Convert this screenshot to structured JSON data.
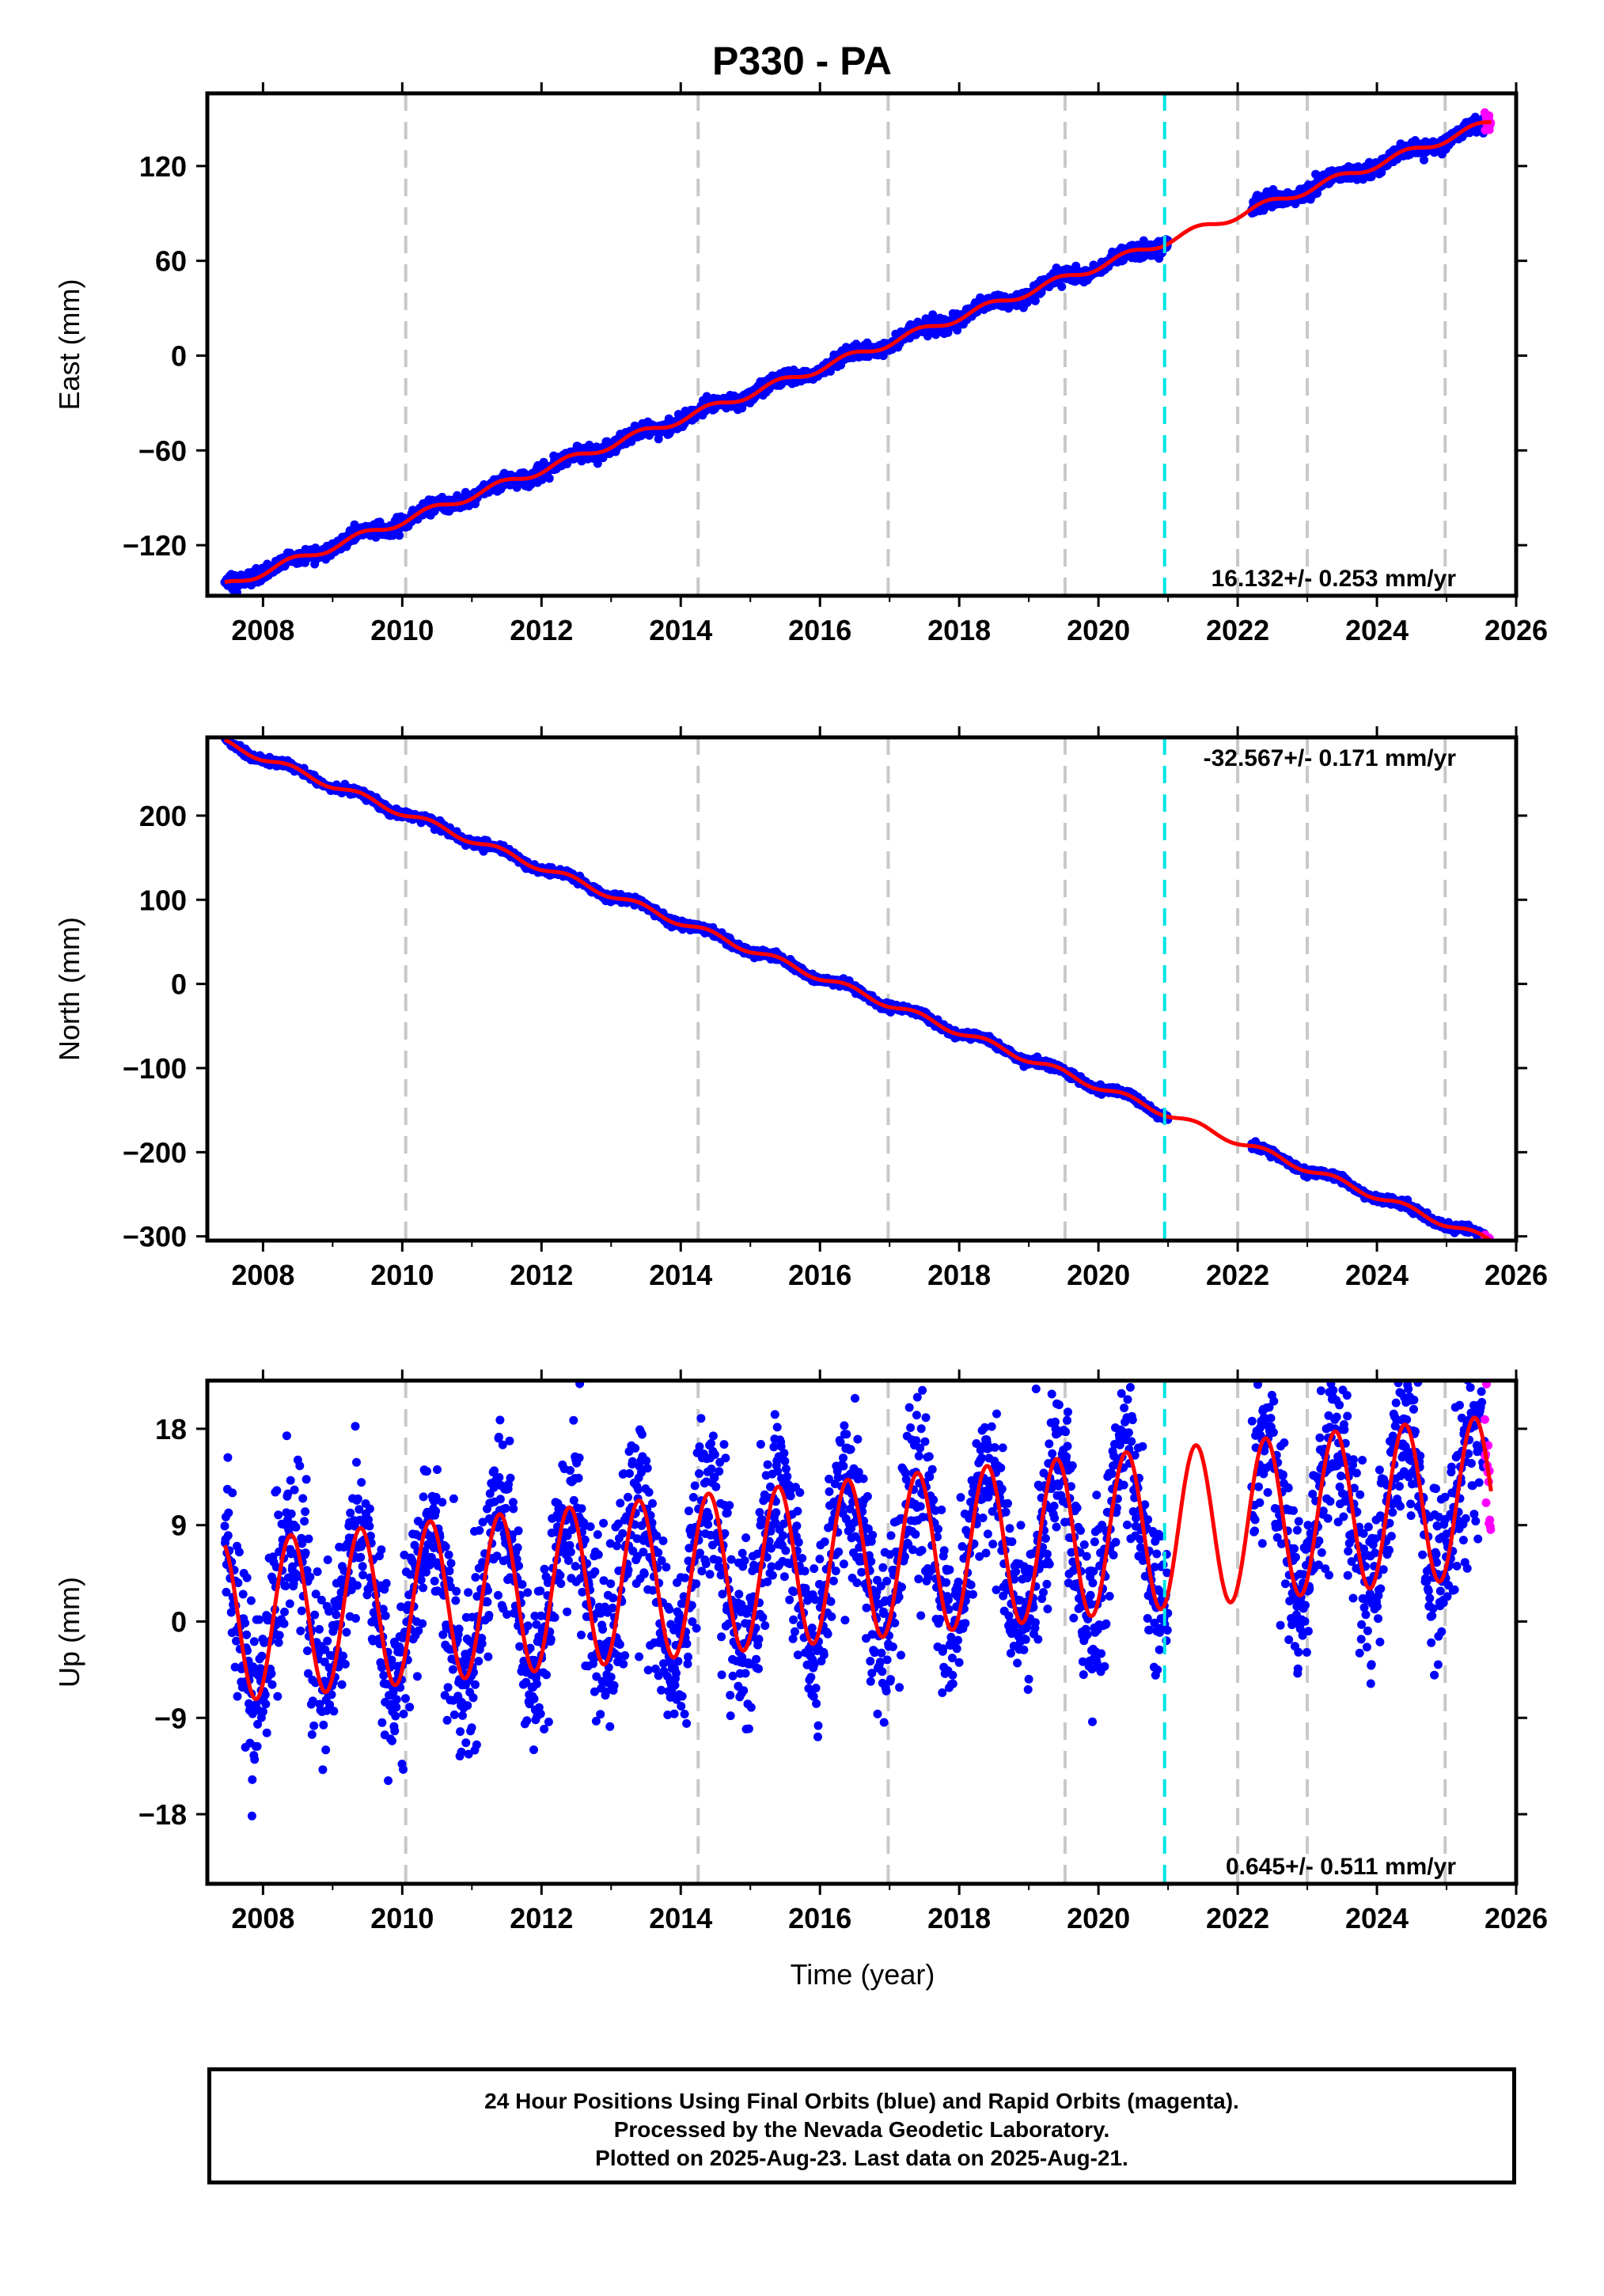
{
  "title": "P330 - PA",
  "footer": {
    "line1": "24 Hour Positions Using Final Orbits (blue) and Rapid Orbits (magenta).",
    "line2": "Processed by the Nevada Geodetic Laboratory.",
    "line3": "Plotted on 2025-Aug-23. Last data on 2025-Aug-21."
  },
  "colors": {
    "final_orbits": "#0000ff",
    "rapid_orbits": "#ff00ff",
    "model_fit": "#ff0000",
    "equipment_change": "#c8c8c8",
    "reference_line": "#00e5e5"
  },
  "chart_data": [
    {
      "type": "scatter",
      "ylabel": "East (mm)",
      "xlabel": "",
      "xlim": [
        2007.2,
        2026.0
      ],
      "ylim": [
        -152,
        166
      ],
      "xticks": [
        "2008",
        "2010",
        "2012",
        "2014",
        "2016",
        "2018",
        "2020",
        "2022",
        "2024",
        "2026"
      ],
      "yticks": [
        "120",
        "60",
        "0",
        "−60",
        "−120"
      ],
      "ytick_values": [
        120,
        60,
        0,
        -60,
        -120
      ],
      "annotation": "16.132+/- 0.253 mm/yr",
      "annotation_position": "bottom-right",
      "trend": {
        "start_year": 2007.5,
        "start_value": -145,
        "rate": 16.132,
        "seasonal_amplitude": 2.5
      },
      "series": [
        {
          "name": "Final Orbits (blue)",
          "x_range": [
            2007.45,
            2025.55
          ],
          "gap": [
            2021.0,
            2022.2
          ]
        },
        {
          "name": "Rapid Orbits (magenta)",
          "x_range": [
            2025.55,
            2025.64
          ]
        },
        {
          "name": "model fit",
          "x_range": [
            2007.45,
            2025.64
          ]
        }
      ],
      "vertical_lines": [
        2010.05,
        2014.25,
        2016.98,
        2019.52,
        2022.0,
        2023.0,
        2024.98
      ],
      "reference_line": 2020.95,
      "grid": false
    },
    {
      "type": "scatter",
      "ylabel": "North (mm)",
      "xlabel": "",
      "xlim": [
        2007.2,
        2026.0
      ],
      "ylim": [
        -305,
        293
      ],
      "xticks": [
        "2008",
        "2010",
        "2012",
        "2014",
        "2016",
        "2018",
        "2020",
        "2022",
        "2024",
        "2026"
      ],
      "yticks": [
        "200",
        "100",
        "0",
        "−100",
        "−200",
        "−300"
      ],
      "ytick_values": [
        200,
        100,
        0,
        -100,
        -200,
        -300
      ],
      "annotation": "-32.567+/- 0.171 mm/yr",
      "annotation_position": "top-right",
      "trend": {
        "start_year": 2007.5,
        "start_value": 285,
        "rate": -32.567,
        "seasonal_amplitude": 4
      },
      "series": [
        {
          "name": "Final Orbits (blue)",
          "x_range": [
            2007.45,
            2025.55
          ],
          "gap": [
            2021.0,
            2022.2
          ]
        },
        {
          "name": "Rapid Orbits (magenta)",
          "x_range": [
            2025.55,
            2025.64
          ]
        },
        {
          "name": "model fit",
          "x_range": [
            2007.45,
            2025.64
          ]
        }
      ],
      "vertical_lines": [
        2010.05,
        2014.25,
        2016.98,
        2019.52,
        2022.0,
        2023.0,
        2024.98
      ],
      "reference_line": 2020.95,
      "grid": false
    },
    {
      "type": "scatter",
      "ylabel": "Up (mm)",
      "xlabel": "Time (year)",
      "xlim": [
        2007.2,
        2026.0
      ],
      "ylim": [
        -24.5,
        22.5
      ],
      "xticks": [
        "2008",
        "2010",
        "2012",
        "2014",
        "2016",
        "2018",
        "2020",
        "2022",
        "2024",
        "2026"
      ],
      "yticks": [
        "18",
        "9",
        "0",
        "−9",
        "−18"
      ],
      "ytick_values": [
        18,
        9,
        0,
        -9,
        -18
      ],
      "annotation": "0.645+/- 0.511 mm/yr",
      "annotation_position": "bottom-right",
      "trend": {
        "start_year": 2007.5,
        "start_value": 0,
        "rate": 0.645,
        "seasonal_amplitude": 7.5
      },
      "series": [
        {
          "name": "Final Orbits (blue)",
          "x_range": [
            2007.45,
            2025.55
          ],
          "gap": [
            2021.0,
            2022.2
          ]
        },
        {
          "name": "Rapid Orbits (magenta)",
          "x_range": [
            2025.55,
            2025.64
          ]
        },
        {
          "name": "model fit",
          "x_range": [
            2007.45,
            2025.64
          ]
        }
      ],
      "vertical_lines": [
        2010.05,
        2014.25,
        2016.98,
        2019.52,
        2022.0,
        2023.0,
        2024.98
      ],
      "reference_line": 2020.95,
      "grid": false
    }
  ]
}
